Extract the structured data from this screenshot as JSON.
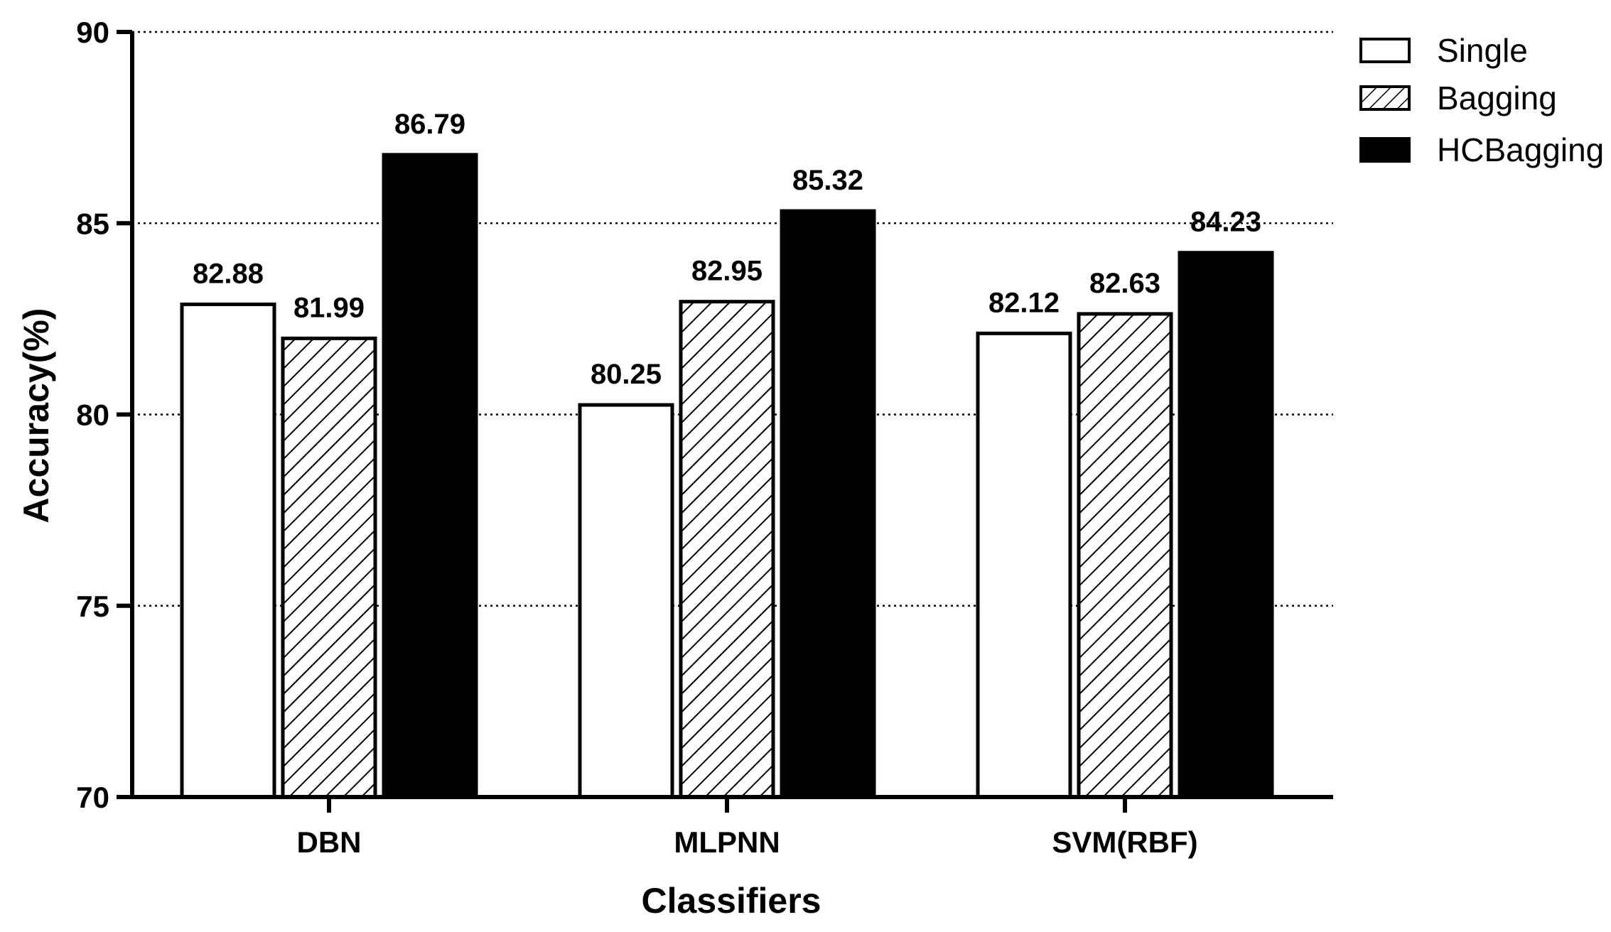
{
  "chart_data": {
    "type": "bar",
    "title": "",
    "xlabel": "Classifiers",
    "ylabel": "Accuracy(%)",
    "ylim": [
      70,
      90
    ],
    "yticks": [
      70,
      75,
      80,
      85,
      90
    ],
    "grid": "horizontal dotted",
    "legend_position": "top-right",
    "categories": [
      "DBN",
      "MLPNN",
      "SVM(RBF)"
    ],
    "series": [
      {
        "name": "Single",
        "values": [
          82.88,
          80.25,
          82.12
        ],
        "fill": "white"
      },
      {
        "name": "Bagging",
        "values": [
          81.99,
          82.95,
          82.63
        ],
        "fill": "hatched"
      },
      {
        "name": "HCBagging",
        "values": [
          86.79,
          85.32,
          84.23
        ],
        "fill": "black"
      }
    ],
    "data_labels": [
      [
        "82.88",
        "80.25",
        "82.12"
      ],
      [
        "81.99",
        "82.95",
        "82.63"
      ],
      [
        "86.79",
        "85.32",
        "84.23"
      ]
    ],
    "colors": {
      "axis": "#000000",
      "single": "#ffffff",
      "hatch": "#000000",
      "hcbagging": "#000000"
    }
  }
}
